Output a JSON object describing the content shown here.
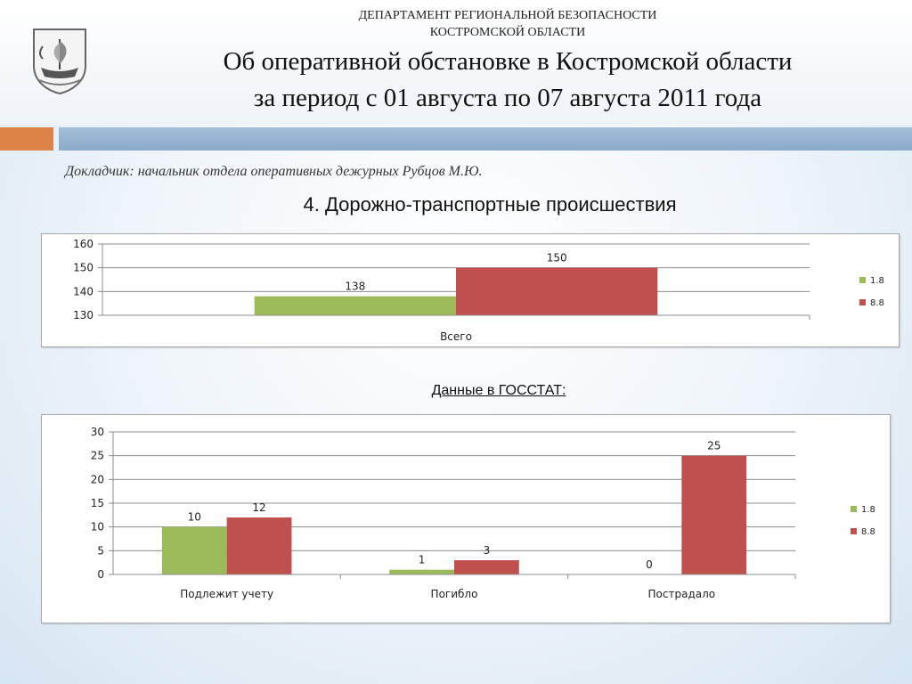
{
  "header": {
    "department_line1": "ДЕПАРТАМЕНТ РЕГИОНАЛЬНОЙ БЕЗОПАСНОСТИ",
    "department_line2": "КОСТРОМСКОЙ ОБЛАСТИ",
    "title_line1": "Об оперативной обстановке в Костромской области",
    "title_line2": "за период с 01 августа по 07 августа 2011 года"
  },
  "speaker": "Докладчик: начальник отдела оперативных дежурных Рубцов М.Ю.",
  "section_title": "4. Дорожно-транспортные происшествия",
  "gosstat_title": "Данные в ГОССТАТ:",
  "colors": {
    "series1": "#9bbb59",
    "series2": "#c0504d",
    "accent_orange": "#dd8347",
    "accent_blue": "#95b3d7"
  },
  "chart_data": [
    {
      "type": "bar",
      "categories": [
        "Всего"
      ],
      "series": [
        {
          "name": "1.8",
          "values": [
            138
          ]
        },
        {
          "name": "8.8",
          "values": [
            150
          ]
        }
      ],
      "ylim": [
        130,
        160
      ],
      "yticks": [
        130,
        140,
        150,
        160
      ],
      "grid": true,
      "legend": "right"
    },
    {
      "type": "bar",
      "categories": [
        "Подлежит учету",
        "Погибло",
        "Пострадало"
      ],
      "series": [
        {
          "name": "1.8",
          "values": [
            10,
            1,
            0
          ]
        },
        {
          "name": "8.8",
          "values": [
            12,
            3,
            25
          ]
        }
      ],
      "ylim": [
        0,
        30
      ],
      "yticks": [
        0,
        5,
        10,
        15,
        20,
        25,
        30
      ],
      "grid": true,
      "legend": "right"
    }
  ]
}
